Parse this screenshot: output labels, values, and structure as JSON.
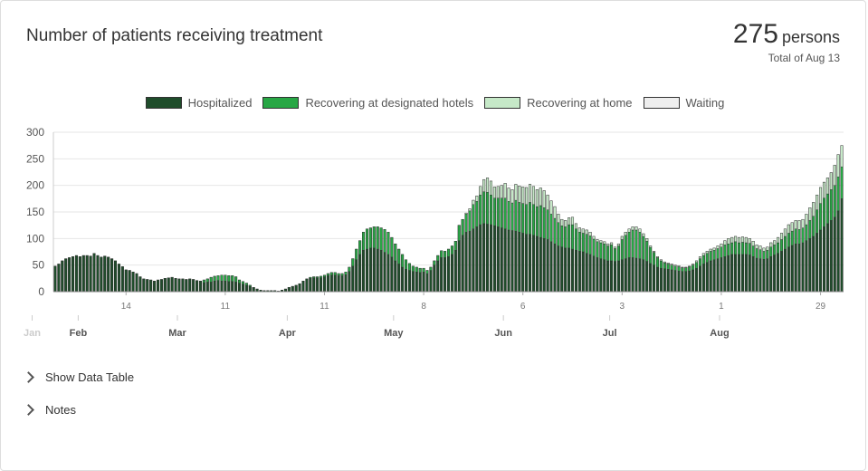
{
  "header": {
    "title": "Number of patients receiving treatment",
    "total_value": "275",
    "total_unit": "persons",
    "total_date": "Total of Aug 13"
  },
  "expanders": {
    "data_table": "Show Data Table",
    "notes": "Notes"
  },
  "chart_data": {
    "type": "bar",
    "stacked": true,
    "ylim": [
      0,
      300
    ],
    "yticks": [
      0,
      50,
      100,
      150,
      200,
      250,
      300
    ],
    "grid": true,
    "legend_position": "top-center",
    "x_start": "Jan 24",
    "x_end": "Aug 13",
    "week_labels": [
      {
        "label": "14",
        "day": 20
      },
      {
        "label": "11",
        "day": 48
      },
      {
        "label": "11",
        "day": 76
      },
      {
        "label": "8",
        "day": 104
      },
      {
        "label": "6",
        "day": 132
      },
      {
        "label": "3",
        "day": 160
      },
      {
        "label": "1",
        "day": 188
      },
      {
        "label": "29",
        "day": 216
      }
    ],
    "month_labels": [
      {
        "label": "Jan",
        "day": -6
      },
      {
        "label": "Feb",
        "day": 7
      },
      {
        "label": "Mar",
        "day": 35
      },
      {
        "label": "Apr",
        "day": 66
      },
      {
        "label": "May",
        "day": 96
      },
      {
        "label": "Jun",
        "day": 127
      },
      {
        "label": "Jul",
        "day": 157
      },
      {
        "label": "Aug",
        "day": 188
      }
    ],
    "series": [
      {
        "name": "Hospitalized",
        "color": "#1f4d2b"
      },
      {
        "name": "Recovering at designated hotels",
        "color": "#28a745"
      },
      {
        "name": "Recovering at home",
        "color": "#c6e9c8"
      },
      {
        "name": "Waiting",
        "color": "#eeeeee"
      }
    ],
    "totals": [
      48,
      52,
      58,
      62,
      64,
      66,
      68,
      66,
      68,
      68,
      67,
      72,
      68,
      65,
      67,
      65,
      62,
      58,
      52,
      47,
      41,
      40,
      37,
      34,
      28,
      24,
      23,
      22,
      20,
      22,
      23,
      25,
      26,
      27,
      25,
      24,
      24,
      23,
      24,
      23,
      21,
      20,
      22,
      24,
      27,
      29,
      30,
      31,
      31,
      30,
      30,
      28,
      22,
      19,
      16,
      12,
      8,
      5,
      3,
      2,
      2,
      2,
      2,
      1,
      3,
      5,
      8,
      10,
      12,
      15,
      20,
      24,
      27,
      28,
      28,
      29,
      31,
      34,
      36,
      36,
      34,
      34,
      37,
      46,
      62,
      80,
      96,
      112,
      118,
      120,
      122,
      122,
      120,
      117,
      112,
      102,
      90,
      80,
      70,
      60,
      53,
      48,
      46,
      44,
      44,
      40,
      46,
      58,
      68,
      77,
      76,
      80,
      86,
      95,
      125,
      136,
      148,
      156,
      172,
      180,
      198,
      211,
      214,
      208,
      197,
      198,
      200,
      204,
      195,
      192,
      202,
      199,
      197,
      196,
      202,
      198,
      192,
      195,
      190,
      182,
      171,
      160,
      146,
      136,
      134,
      139,
      140,
      128,
      120,
      118,
      116,
      112,
      104,
      98,
      96,
      94,
      90,
      92,
      84,
      90,
      104,
      112,
      118,
      122,
      122,
      118,
      109,
      100,
      86,
      76,
      66,
      60,
      56,
      54,
      52,
      50,
      49,
      46,
      46,
      48,
      52,
      58,
      66,
      72,
      76,
      80,
      82,
      86,
      90,
      96,
      100,
      102,
      104,
      102,
      103,
      102,
      100,
      95,
      88,
      86,
      82,
      84,
      92,
      96,
      102,
      110,
      118,
      126,
      130,
      134,
      134,
      136,
      146,
      158,
      168,
      182,
      196,
      206,
      214,
      224,
      238,
      258,
      275
    ],
    "hospitalized": [
      48,
      52,
      58,
      62,
      64,
      66,
      68,
      66,
      68,
      68,
      67,
      72,
      68,
      65,
      67,
      65,
      62,
      58,
      52,
      47,
      41,
      40,
      37,
      34,
      28,
      24,
      23,
      22,
      20,
      22,
      23,
      25,
      26,
      27,
      25,
      24,
      24,
      23,
      24,
      23,
      21,
      20,
      17,
      18,
      18,
      20,
      21,
      20,
      20,
      19,
      19,
      18,
      16,
      14,
      12,
      10,
      7,
      5,
      3,
      2,
      2,
      2,
      2,
      1,
      3,
      5,
      8,
      10,
      12,
      15,
      20,
      24,
      25,
      26,
      26,
      26,
      28,
      30,
      31,
      31,
      30,
      30,
      32,
      38,
      48,
      60,
      70,
      78,
      80,
      82,
      82,
      80,
      78,
      74,
      70,
      65,
      58,
      52,
      46,
      42,
      40,
      38,
      37,
      36,
      37,
      34,
      40,
      50,
      58,
      64,
      64,
      66,
      70,
      78,
      96,
      106,
      112,
      114,
      118,
      122,
      126,
      128,
      127,
      126,
      124,
      122,
      120,
      118,
      116,
      115,
      114,
      112,
      110,
      108,
      108,
      106,
      104,
      102,
      100,
      98,
      94,
      90,
      86,
      84,
      82,
      82,
      80,
      78,
      76,
      75,
      72,
      70,
      67,
      64,
      62,
      60,
      58,
      58,
      57,
      58,
      60,
      62,
      64,
      64,
      63,
      62,
      60,
      57,
      53,
      50,
      46,
      44,
      43,
      42,
      41,
      40,
      39,
      38,
      38,
      39,
      41,
      44,
      48,
      52,
      55,
      58,
      60,
      62,
      64,
      66,
      68,
      70,
      70,
      70,
      70,
      70,
      69,
      66,
      63,
      62,
      61,
      62,
      66,
      69,
      72,
      76,
      80,
      84,
      87,
      90,
      90,
      92,
      96,
      100,
      104,
      110,
      116,
      122,
      128,
      134,
      140,
      152,
      175
    ],
    "hotels": [
      0,
      0,
      0,
      0,
      0,
      0,
      0,
      0,
      0,
      0,
      0,
      0,
      0,
      0,
      0,
      0,
      0,
      0,
      0,
      0,
      0,
      0,
      0,
      0,
      0,
      0,
      0,
      0,
      0,
      0,
      0,
      0,
      0,
      0,
      0,
      0,
      0,
      0,
      0,
      0,
      0,
      0,
      5,
      6,
      9,
      9,
      9,
      11,
      11,
      11,
      11,
      10,
      6,
      5,
      4,
      2,
      1,
      0,
      0,
      0,
      0,
      0,
      0,
      0,
      0,
      0,
      0,
      0,
      0,
      0,
      0,
      0,
      2,
      2,
      2,
      3,
      3,
      4,
      5,
      5,
      4,
      4,
      5,
      8,
      14,
      20,
      26,
      34,
      38,
      38,
      40,
      42,
      42,
      43,
      42,
      37,
      32,
      28,
      24,
      18,
      13,
      10,
      9,
      8,
      7,
      6,
      6,
      8,
      10,
      13,
      12,
      14,
      16,
      17,
      29,
      30,
      34,
      38,
      46,
      48,
      56,
      60,
      60,
      56,
      52,
      54,
      56,
      58,
      54,
      52,
      58,
      56,
      56,
      56,
      60,
      58,
      56,
      60,
      58,
      56,
      52,
      48,
      44,
      40,
      40,
      44,
      46,
      40,
      36,
      35,
      36,
      35,
      32,
      30,
      30,
      30,
      28,
      30,
      24,
      28,
      38,
      44,
      48,
      52,
      53,
      50,
      44,
      38,
      30,
      24,
      18,
      14,
      11,
      10,
      9,
      8,
      8,
      7,
      7,
      8,
      9,
      11,
      14,
      16,
      17,
      18,
      18,
      19,
      20,
      22,
      22,
      22,
      24,
      22,
      23,
      22,
      22,
      20,
      18,
      17,
      15,
      16,
      18,
      19,
      20,
      22,
      24,
      26,
      27,
      28,
      27,
      28,
      30,
      34,
      38,
      44,
      50,
      54,
      56,
      58,
      60,
      64,
      60
    ],
    "home": [
      0,
      0,
      0,
      0,
      0,
      0,
      0,
      0,
      0,
      0,
      0,
      0,
      0,
      0,
      0,
      0,
      0,
      0,
      0,
      0,
      0,
      0,
      0,
      0,
      0,
      0,
      0,
      0,
      0,
      0,
      0,
      0,
      0,
      0,
      0,
      0,
      0,
      0,
      0,
      0,
      0,
      0,
      0,
      0,
      0,
      0,
      0,
      0,
      0,
      0,
      0,
      0,
      0,
      0,
      0,
      0,
      0,
      0,
      0,
      0,
      0,
      0,
      0,
      0,
      0,
      0,
      0,
      0,
      0,
      0,
      0,
      0,
      0,
      0,
      0,
      0,
      0,
      0,
      0,
      0,
      0,
      0,
      0,
      0,
      0,
      0,
      0,
      0,
      0,
      0,
      0,
      0,
      0,
      0,
      0,
      0,
      0,
      0,
      0,
      0,
      0,
      0,
      0,
      0,
      0,
      0,
      0,
      0,
      0,
      0,
      0,
      0,
      0,
      0,
      0,
      0,
      2,
      4,
      8,
      10,
      16,
      23,
      27,
      26,
      21,
      22,
      24,
      28,
      25,
      25,
      30,
      31,
      31,
      32,
      34,
      34,
      32,
      33,
      32,
      28,
      25,
      22,
      16,
      12,
      12,
      13,
      14,
      10,
      8,
      8,
      8,
      7,
      5,
      4,
      4,
      4,
      4,
      4,
      3,
      4,
      6,
      6,
      6,
      6,
      6,
      6,
      5,
      5,
      3,
      2,
      2,
      2,
      2,
      2,
      2,
      2,
      2,
      1,
      1,
      1,
      2,
      3,
      4,
      4,
      4,
      4,
      4,
      5,
      6,
      8,
      10,
      10,
      10,
      10,
      10,
      10,
      9,
      9,
      7,
      7,
      6,
      6,
      8,
      8,
      10,
      12,
      14,
      16,
      16,
      16,
      17,
      16,
      20,
      24,
      26,
      28,
      30,
      30,
      30,
      32,
      38,
      42,
      40
    ],
    "waiting": [
      0,
      0,
      0,
      0,
      0,
      0,
      0,
      0,
      0,
      0,
      0,
      0,
      0,
      0,
      0,
      0,
      0,
      0,
      0,
      0,
      0,
      0,
      0,
      0,
      0,
      0,
      0,
      0,
      0,
      0,
      0,
      0,
      0,
      0,
      0,
      0,
      0,
      0,
      0,
      0,
      0,
      0,
      0,
      0,
      0,
      0,
      0,
      0,
      0,
      0,
      0,
      0,
      0,
      0,
      0,
      0,
      0,
      0,
      0,
      0,
      0,
      0,
      0,
      0,
      0,
      0,
      0,
      0,
      0,
      0,
      0,
      0,
      0,
      0,
      0,
      0,
      0,
      0,
      0,
      0,
      0,
      0,
      0,
      0,
      0,
      0,
      0,
      0,
      0,
      0,
      0,
      0,
      0,
      0,
      0,
      0,
      0,
      0,
      0,
      0,
      0,
      0,
      0,
      0,
      0,
      0,
      0,
      0,
      0,
      0,
      0,
      0,
      0,
      0,
      0,
      0,
      0,
      0,
      0,
      0,
      0,
      0,
      0,
      0,
      0,
      0,
      0,
      0,
      0,
      0,
      0,
      0,
      0,
      0,
      0,
      0,
      0,
      0,
      0,
      0,
      0,
      0,
      0,
      0,
      0,
      0,
      0,
      0,
      0,
      0,
      0,
      0,
      0,
      0,
      0,
      0,
      0,
      0,
      0,
      0,
      0,
      0,
      0,
      0,
      0,
      0,
      0,
      0,
      0,
      0,
      0,
      0,
      0,
      0,
      0,
      0,
      0,
      0,
      0,
      0,
      0,
      0,
      0,
      0,
      0,
      0,
      0,
      0,
      0,
      0,
      0,
      0,
      0,
      0,
      0,
      0,
      0,
      0,
      0,
      0,
      0,
      0,
      0,
      0,
      0,
      0,
      0,
      0,
      0,
      0,
      0,
      0,
      0,
      0,
      0,
      0,
      0,
      0,
      0,
      0,
      0,
      0,
      0,
      0,
      0,
      0,
      0
    ]
  }
}
